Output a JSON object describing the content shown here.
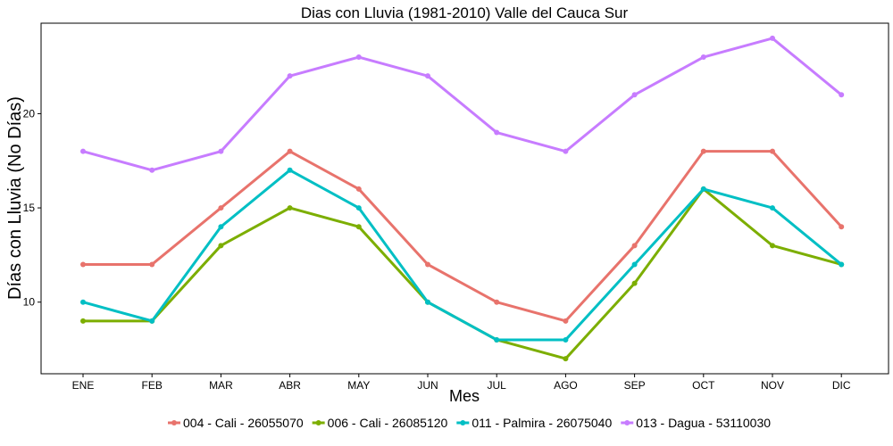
{
  "chart_data": {
    "type": "line",
    "title": "Dias con Lluvia (1981-2010)  Valle del Cauca Sur",
    "xlabel": "Mes",
    "ylabel": "Días con Lluvia (No Días)",
    "categories": [
      "ENE",
      "FEB",
      "MAR",
      "ABR",
      "MAY",
      "JUN",
      "JUL",
      "AGO",
      "SEP",
      "OCT",
      "NOV",
      "DIC"
    ],
    "yticks": [
      10,
      15,
      20
    ],
    "ylim": [
      6.2,
      24.8
    ],
    "grid": false,
    "legend_position": "bottom",
    "series": [
      {
        "name": "004 - Cali - 26055070",
        "color": "#E8736C",
        "values": [
          12,
          12,
          15,
          18,
          16,
          12,
          10,
          9,
          13,
          18,
          18,
          14
        ]
      },
      {
        "name": "006 - Cali - 26085120",
        "color": "#7CAE00",
        "values": [
          9,
          9,
          13,
          15,
          14,
          10,
          8,
          7,
          11,
          16,
          13,
          12
        ]
      },
      {
        "name": "011 - Palmira - 26075040",
        "color": "#00BFC4",
        "values": [
          10,
          9,
          14,
          17,
          15,
          10,
          8,
          8,
          12,
          16,
          15,
          12
        ]
      },
      {
        "name": "013 - Dagua - 53110030",
        "color": "#C77CFF",
        "values": [
          18,
          17,
          18,
          22,
          23,
          22,
          19,
          18,
          21,
          23,
          24,
          21
        ]
      }
    ]
  }
}
